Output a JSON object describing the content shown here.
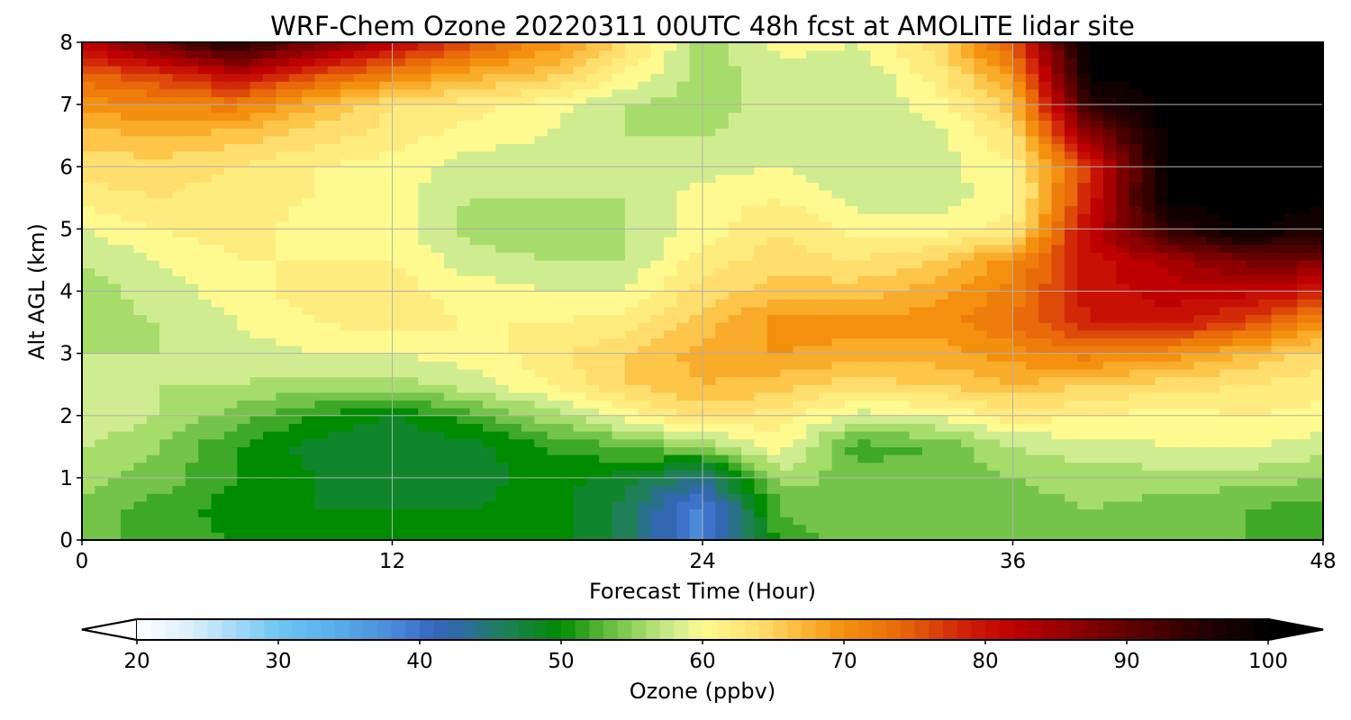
{
  "chart_data": {
    "type": "heatmap",
    "title": "WRF-Chem Ozone  20220311 00UTC 48h fcst at AMOLITE lidar site",
    "xlabel": "Forecast Time (Hour)",
    "ylabel": "Alt AGL (km)",
    "xlim": [
      0,
      48
    ],
    "ylim": [
      0,
      8
    ],
    "xticks": [
      "0",
      "12",
      "24",
      "36",
      "48"
    ],
    "yticks": [
      "0",
      "1",
      "2",
      "3",
      "4",
      "5",
      "6",
      "7",
      "8"
    ],
    "grid": true,
    "x": [
      0,
      3,
      6,
      9,
      12,
      15,
      18,
      21,
      24,
      27,
      30,
      33,
      36,
      39,
      42,
      45,
      48
    ],
    "y": [
      0,
      0.5,
      1,
      1.5,
      2,
      2.5,
      3,
      3.5,
      4,
      4.5,
      5,
      5.5,
      6,
      6.5,
      7,
      7.5,
      8
    ],
    "z": [
      [
        54,
        52,
        51,
        50,
        50,
        50,
        50,
        46,
        38,
        52,
        54,
        54,
        53,
        54,
        53,
        53,
        52
      ],
      [
        54,
        52,
        50,
        49,
        49,
        49,
        50,
        46,
        38,
        53,
        55,
        54,
        54,
        55,
        54,
        53,
        52
      ],
      [
        56,
        54,
        51,
        49,
        48,
        48,
        50,
        48,
        44,
        56,
        54,
        54,
        55,
        56,
        56,
        56,
        55
      ],
      [
        57,
        55,
        51,
        48,
        47,
        48,
        51,
        53,
        55,
        60,
        52,
        53,
        57,
        58,
        59,
        59,
        58
      ],
      [
        59,
        57,
        54,
        51,
        49,
        52,
        56,
        60,
        64,
        62,
        58,
        59,
        62,
        61,
        60,
        61,
        60
      ],
      [
        58,
        57,
        57,
        56,
        56,
        58,
        61,
        65,
        67,
        66,
        64,
        65,
        67,
        65,
        64,
        63,
        62
      ],
      [
        57,
        57,
        58,
        59,
        59,
        60,
        62,
        65,
        68,
        69,
        68,
        68,
        70,
        72,
        70,
        67,
        64
      ],
      [
        56,
        57,
        59,
        61,
        62,
        61,
        61,
        62,
        66,
        70,
        70,
        70,
        73,
        79,
        80,
        76,
        70
      ],
      [
        56,
        58,
        60,
        62,
        62,
        60,
        59,
        59,
        64,
        66,
        66,
        68,
        72,
        80,
        82,
        82,
        79
      ],
      [
        57,
        59,
        61,
        61,
        61,
        58,
        57,
        57,
        62,
        64,
        63,
        65,
        70,
        80,
        84,
        88,
        88
      ],
      [
        59,
        61,
        62,
        60,
        60,
        56,
        56,
        57,
        60,
        63,
        60,
        60,
        62,
        82,
        95,
        100,
        97
      ],
      [
        62,
        63,
        62,
        61,
        60,
        57,
        57,
        57,
        60,
        61,
        58,
        58,
        60,
        79,
        100,
        100,
        100
      ],
      [
        64,
        64,
        63,
        61,
        60,
        58,
        58,
        57,
        58,
        59,
        57,
        58,
        61,
        78,
        100,
        100,
        100
      ],
      [
        66,
        67,
        66,
        64,
        62,
        60,
        59,
        57,
        57,
        58,
        57,
        58,
        63,
        86,
        100,
        100,
        100
      ],
      [
        70,
        71,
        72,
        67,
        63,
        62,
        60,
        57,
        56,
        58,
        57,
        60,
        66,
        95,
        100,
        100,
        100
      ],
      [
        74,
        77,
        82,
        76,
        72,
        68,
        66,
        61,
        56,
        58,
        57,
        62,
        70,
        100,
        100,
        100,
        100
      ],
      [
        82,
        90,
        97,
        88,
        82,
        76,
        70,
        64,
        56,
        60,
        59,
        64,
        75,
        100,
        100,
        100,
        100
      ]
    ],
    "colorbar": {
      "label": "Ozone  (ppbv)",
      "vmin": 20,
      "vmax": 100,
      "ticks": [
        "20",
        "30",
        "40",
        "50",
        "60",
        "70",
        "80",
        "90",
        "100"
      ],
      "extend": "both",
      "stops": [
        {
          "v": 20,
          "c": "#ffffff"
        },
        {
          "v": 24,
          "c": "#d8eefb"
        },
        {
          "v": 30,
          "c": "#6ec6f2"
        },
        {
          "v": 34,
          "c": "#58aeea"
        },
        {
          "v": 38,
          "c": "#4a8cda"
        },
        {
          "v": 41,
          "c": "#3666c0"
        },
        {
          "v": 43,
          "c": "#2e6aa0"
        },
        {
          "v": 46,
          "c": "#1f7f58"
        },
        {
          "v": 50,
          "c": "#008c00"
        },
        {
          "v": 53,
          "c": "#5cb83a"
        },
        {
          "v": 56,
          "c": "#a6dc6a"
        },
        {
          "v": 58,
          "c": "#d0ec90"
        },
        {
          "v": 60,
          "c": "#fffa90"
        },
        {
          "v": 64,
          "c": "#ffde6e"
        },
        {
          "v": 67,
          "c": "#fcb838"
        },
        {
          "v": 70,
          "c": "#f4900e"
        },
        {
          "v": 74,
          "c": "#e86a0a"
        },
        {
          "v": 79,
          "c": "#cc1a08"
        },
        {
          "v": 82,
          "c": "#be0000"
        },
        {
          "v": 88,
          "c": "#7a0000"
        },
        {
          "v": 95,
          "c": "#2a0000"
        },
        {
          "v": 100,
          "c": "#000000"
        }
      ]
    }
  }
}
